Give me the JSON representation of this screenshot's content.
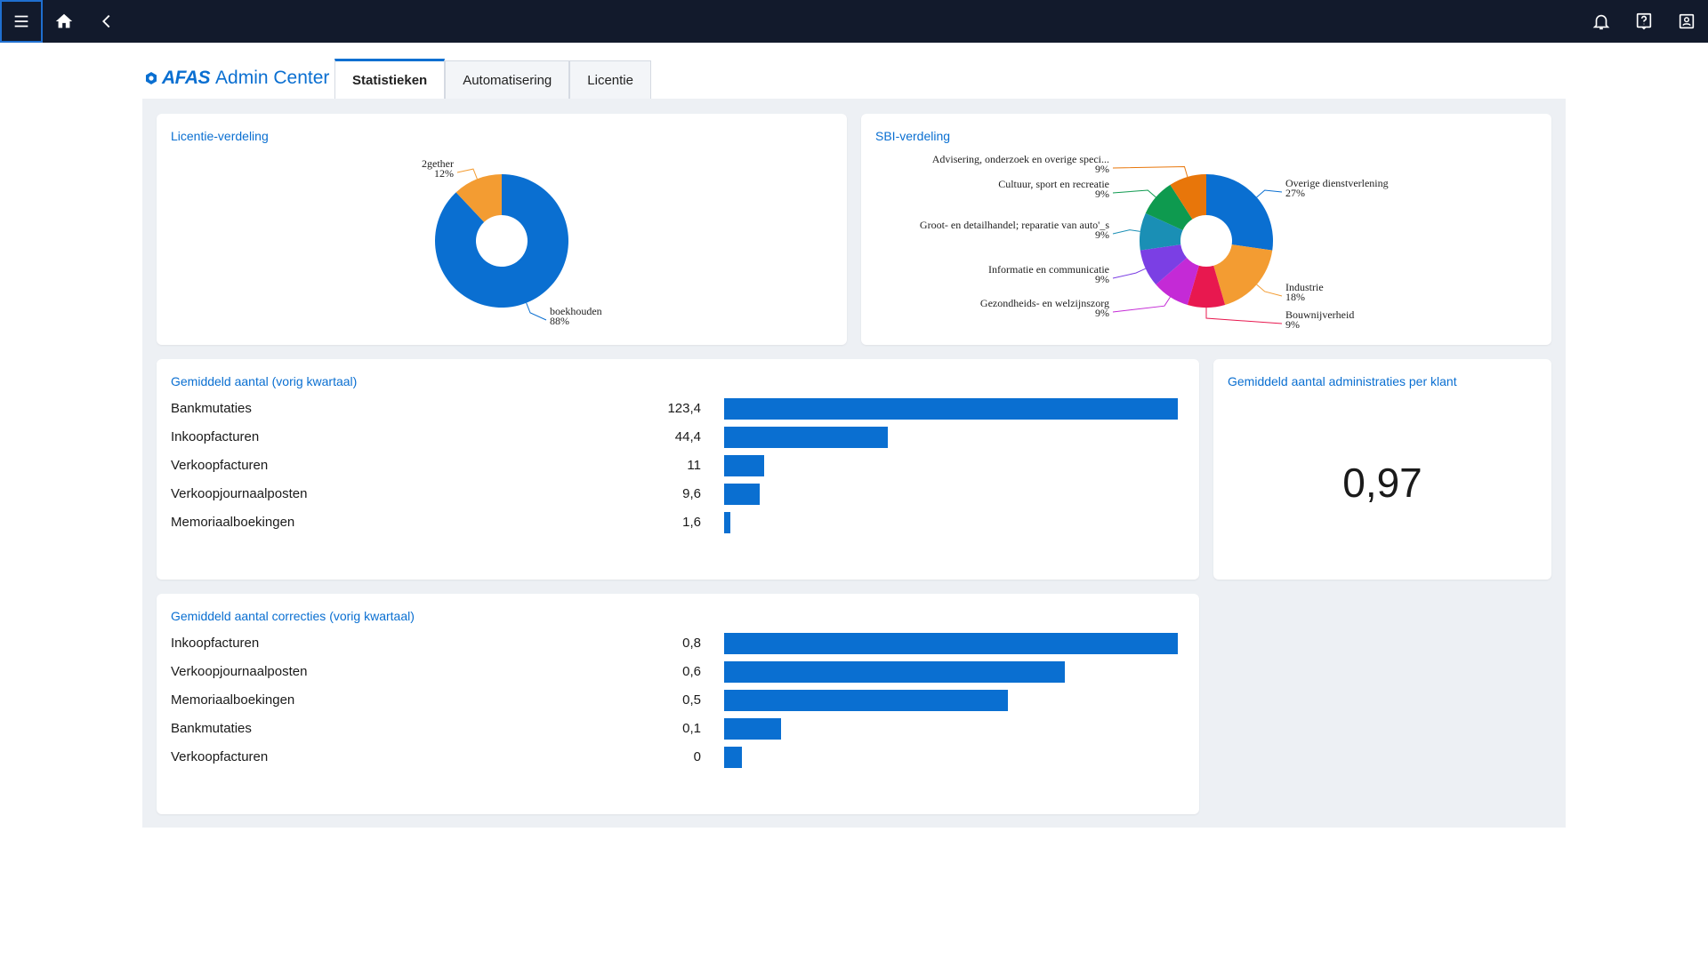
{
  "app": {
    "brand": "AFAS",
    "title": "Admin Center"
  },
  "topbar": {
    "icons": [
      "menu-icon",
      "home-icon",
      "back-icon",
      "bell-icon",
      "help-icon",
      "profile-icon"
    ]
  },
  "tabs": [
    {
      "label": "Statistieken",
      "active": true
    },
    {
      "label": "Automatisering",
      "active": false
    },
    {
      "label": "Licentie",
      "active": false
    }
  ],
  "licentie_card": {
    "title": "Licentie-verdeling"
  },
  "sbi_card": {
    "title": "SBI-verdeling"
  },
  "gemiddeld_card": {
    "title": "Gemiddeld aantal (vorig kwartaal)"
  },
  "administraties_card": {
    "title": "Gemiddeld aantal administraties per klant",
    "value": "0,97"
  },
  "correcties_card": {
    "title": "Gemiddeld aantal correcties (vorig kwartaal)"
  },
  "colors": {
    "accent": "#0a6fd1",
    "topbar": "#121a2c",
    "orange": "#f39c32"
  },
  "chart_data": [
    {
      "type": "pie",
      "title": "Licentie-verdeling",
      "slices": [
        {
          "label": "boekhouden",
          "value": 88,
          "display": "88%",
          "color": "#0a6fd1"
        },
        {
          "label": "2gether",
          "value": 12,
          "display": "12%",
          "color": "#f39c32"
        }
      ]
    },
    {
      "type": "pie",
      "title": "SBI-verdeling",
      "slices": [
        {
          "label": "Overige dienstverlening",
          "value": 27,
          "display": "27%",
          "color": "#0a6fd1"
        },
        {
          "label": "Industrie",
          "value": 18,
          "display": "18%",
          "color": "#f39c32"
        },
        {
          "label": "Bouwnijverheid",
          "value": 9,
          "display": "9%",
          "color": "#e8184f"
        },
        {
          "label": "Gezondheids- en welzijnszorg",
          "value": 9,
          "display": "9%",
          "color": "#c42ad6"
        },
        {
          "label": "Informatie en communicatie",
          "value": 9,
          "display": "9%",
          "color": "#7b3fe4"
        },
        {
          "label": "Groot- en detailhandel; reparatie van auto'_s",
          "value": 9,
          "display": "9%",
          "color": "#1a8fb5"
        },
        {
          "label": "Cultuur, sport en recreatie",
          "value": 9,
          "display": "9%",
          "color": "#0e9a4f"
        },
        {
          "label": "Advisering, onderzoek en overige speci...",
          "value": 9,
          "display": "9%",
          "color": "#e8760a"
        }
      ]
    },
    {
      "type": "bar",
      "title": "Gemiddeld aantal (vorig kwartaal)",
      "orientation": "horizontal",
      "categories": [
        "Bankmutaties",
        "Inkoopfacturen",
        "Verkoopfacturen",
        "Verkoopjournaalposten",
        "Memoriaalboekingen"
      ],
      "values": [
        123.4,
        44.4,
        11,
        9.6,
        1.6
      ],
      "labels": [
        "123,4",
        "44,4",
        "11",
        "9,6",
        "1,6"
      ]
    },
    {
      "type": "bar",
      "title": "Gemiddeld aantal correcties (vorig kwartaal)",
      "orientation": "horizontal",
      "categories": [
        "Inkoopfacturen",
        "Verkoopjournaalposten",
        "Memoriaalboekingen",
        "Bankmutaties",
        "Verkoopfacturen"
      ],
      "values": [
        0.8,
        0.6,
        0.5,
        0.1,
        0
      ],
      "labels": [
        "0,8",
        "0,6",
        "0,5",
        "0,1",
        "0"
      ]
    }
  ]
}
